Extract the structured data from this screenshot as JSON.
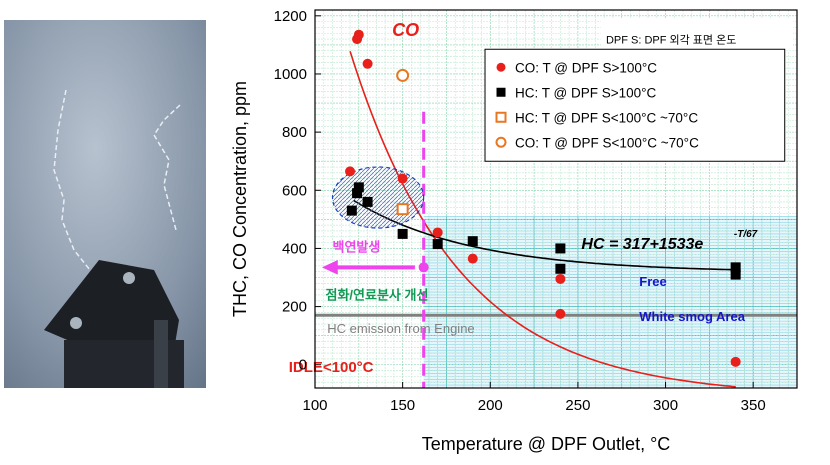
{
  "chart_data": {
    "type": "scatter",
    "xlabel": "Temperature @ DPF Outlet, °C",
    "ylabel": "THC, CO Concentration, ppm",
    "xlim": [
      100,
      375
    ],
    "ylim": [
      -80,
      1220
    ],
    "x_ticks": [
      "100",
      "150",
      "200",
      "250",
      "300",
      "350"
    ],
    "y_ticks": [
      "0",
      "200",
      "400",
      "600",
      "800",
      "1000",
      "1200"
    ],
    "grid": true,
    "legend_position": "top-right",
    "note": "DPF S: DPF 외각 표면 온도",
    "series": [
      {
        "name": "CO: T @ DPF S>100°C",
        "marker": "circle-red",
        "points": [
          [
            120,
            665
          ],
          [
            124,
            1120
          ],
          [
            125,
            1135
          ],
          [
            130,
            1035
          ],
          [
            150,
            640
          ],
          [
            170,
            455
          ],
          [
            190,
            365
          ],
          [
            240,
            295
          ],
          [
            240,
            175
          ],
          [
            340,
            10
          ]
        ]
      },
      {
        "name": "HC: T @ DPF S>100°C",
        "marker": "square-black",
        "points": [
          [
            121,
            530
          ],
          [
            124,
            590
          ],
          [
            125,
            610
          ],
          [
            130,
            560
          ],
          [
            150,
            450
          ],
          [
            170,
            415
          ],
          [
            190,
            425
          ],
          [
            240,
            400
          ],
          [
            240,
            330
          ],
          [
            340,
            310
          ],
          [
            340,
            335
          ]
        ]
      },
      {
        "name": "HC: T @ DPF S<100°C ~70°C",
        "marker": "square-orange-open",
        "points": [
          [
            150,
            535
          ]
        ]
      },
      {
        "name": "CO: T @ DPF S<100°C ~70°C",
        "marker": "circle-orange-open",
        "points": [
          [
            150,
            995
          ]
        ]
      }
    ],
    "annotations": {
      "co_label": "CO",
      "hc_fit": "HC = 317+1533e",
      "hc_fit_exp": "-T/67",
      "white_smog": "백연발생",
      "improvement": "점화/연료분사 개선",
      "free_zone_1": "Free",
      "free_zone_2": "White smog Area",
      "hc_engine": "HC emission from Engine",
      "idle": "IDLE<100°C"
    },
    "threshold_x": 162,
    "hc_engine_level": 170,
    "free_zone": {
      "x_from": 162,
      "y_to": 510
    },
    "co_fit_range": [
      120,
      340
    ],
    "colors": {
      "co": "#e8201b",
      "hc": "#000000",
      "open": "#e87722",
      "vline": "#ee44ee",
      "zone": "#0aa3c8",
      "engine": "#808080",
      "blue": "#1515c8",
      "green": "#119955"
    }
  },
  "photo": {
    "description_icon": "white-smog-photo"
  }
}
